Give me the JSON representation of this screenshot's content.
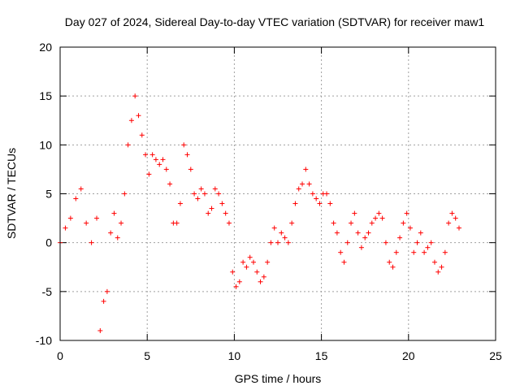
{
  "chart_data": {
    "type": "scatter",
    "title": "Day 027 of 2024, Sidereal Day-to-day VTEC variation (SDTVAR) for receiver maw1",
    "xlabel": "GPS time / hours",
    "ylabel": "SDTVAR / TECUs",
    "xlim": [
      0,
      25
    ],
    "ylim": [
      -10,
      20
    ],
    "xticks": [
      0,
      5,
      10,
      15,
      20,
      25
    ],
    "yticks": [
      -10,
      -5,
      0,
      5,
      10,
      15,
      20
    ],
    "grid": true,
    "marker": "+",
    "series": [
      {
        "name": "SDTVAR",
        "color": "#ff0000",
        "x": [
          0.0,
          0.3,
          0.6,
          0.9,
          1.2,
          1.5,
          1.8,
          2.1,
          2.3,
          2.5,
          2.7,
          2.9,
          3.1,
          3.3,
          3.5,
          3.7,
          3.9,
          4.1,
          4.3,
          4.5,
          4.7,
          4.9,
          5.1,
          5.3,
          5.5,
          5.7,
          5.9,
          6.1,
          6.3,
          6.5,
          6.7,
          6.9,
          7.1,
          7.3,
          7.5,
          7.7,
          7.9,
          8.1,
          8.3,
          8.5,
          8.7,
          8.9,
          9.1,
          9.3,
          9.5,
          9.7,
          9.9,
          10.1,
          10.3,
          10.5,
          10.7,
          10.9,
          11.1,
          11.3,
          11.5,
          11.7,
          11.9,
          12.1,
          12.3,
          12.5,
          12.7,
          12.9,
          13.1,
          13.3,
          13.5,
          13.7,
          13.9,
          14.1,
          14.3,
          14.5,
          14.7,
          14.9,
          15.1,
          15.3,
          15.5,
          15.7,
          15.9,
          16.1,
          16.3,
          16.5,
          16.7,
          16.9,
          17.1,
          17.3,
          17.5,
          17.7,
          17.9,
          18.1,
          18.3,
          18.5,
          18.7,
          18.9,
          19.1,
          19.3,
          19.5,
          19.7,
          19.9,
          20.1,
          20.3,
          20.5,
          20.7,
          20.9,
          21.1,
          21.3,
          21.5,
          21.7,
          21.9,
          22.1,
          22.3,
          22.5,
          22.7,
          22.9
        ],
        "y": [
          0.0,
          1.5,
          2.5,
          4.5,
          5.5,
          2.0,
          0.0,
          2.5,
          -9.0,
          -6.0,
          -5.0,
          1.0,
          3.0,
          0.5,
          2.0,
          5.0,
          10.0,
          12.5,
          15.0,
          13.0,
          11.0,
          9.0,
          7.0,
          9.0,
          8.5,
          8.0,
          8.5,
          7.5,
          6.0,
          2.0,
          2.0,
          4.0,
          10.0,
          9.0,
          7.5,
          5.0,
          4.5,
          5.5,
          5.0,
          3.0,
          3.5,
          5.5,
          5.0,
          4.0,
          3.0,
          2.0,
          -3.0,
          -4.5,
          -4.0,
          -2.0,
          -2.5,
          -1.5,
          -2.0,
          -3.0,
          -4.0,
          -3.5,
          -2.0,
          0.0,
          1.5,
          0.0,
          1.0,
          0.5,
          0.0,
          2.0,
          4.0,
          5.5,
          6.0,
          7.5,
          6.0,
          5.0,
          4.5,
          4.0,
          5.0,
          5.0,
          4.0,
          2.0,
          1.0,
          -1.0,
          -2.0,
          0.0,
          2.0,
          3.0,
          1.0,
          -0.5,
          0.5,
          1.0,
          2.0,
          2.5,
          3.0,
          2.5,
          0.0,
          -2.0,
          -2.5,
          -1.0,
          0.5,
          2.0,
          3.0,
          1.5,
          -1.0,
          0.0,
          1.0,
          -1.0,
          -0.5,
          0.0,
          -2.0,
          -3.0,
          -2.5,
          -1.0,
          2.0,
          3.0,
          2.5,
          1.5
        ]
      }
    ]
  }
}
